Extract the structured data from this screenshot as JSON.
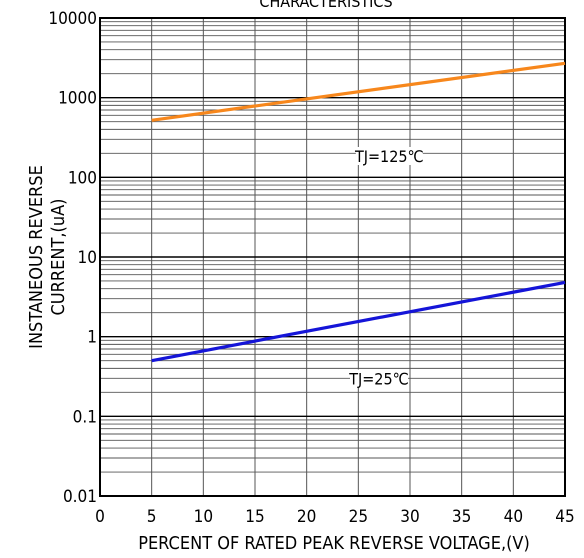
{
  "chart_data": {
    "type": "line",
    "title": "CHARACTERISTICS",
    "xlabel": "PERCENT OF RATED PEAK REVERSE VOLTAGE,(V)",
    "ylabel_lines": [
      "INSTANEOUS REVERSE",
      "CURRENT,(uA)"
    ],
    "x_ticks": [
      0,
      5,
      10,
      15,
      20,
      25,
      30,
      35,
      40,
      45
    ],
    "y_ticks": [
      {
        "value": 0.01,
        "label": "0.01"
      },
      {
        "value": 0.1,
        "label": "0.1"
      },
      {
        "value": 1,
        "label": "1"
      },
      {
        "value": 10,
        "label": "10"
      },
      {
        "value": 100,
        "label": "100"
      },
      {
        "value": 1000,
        "label": "1000"
      },
      {
        "value": 10000,
        "label": "10000"
      }
    ],
    "xlim": [
      0,
      45
    ],
    "ylim": [
      0.01,
      10000
    ],
    "y_scale": "log",
    "grid": true,
    "series": [
      {
        "name": "TJ=125℃",
        "color": "#f7871c",
        "x": [
          5,
          45
        ],
        "y": [
          520,
          2700
        ]
      },
      {
        "name": "TJ=25℃",
        "color": "#1515d8",
        "x": [
          5,
          45
        ],
        "y": [
          0.5,
          4.8
        ]
      }
    ]
  }
}
